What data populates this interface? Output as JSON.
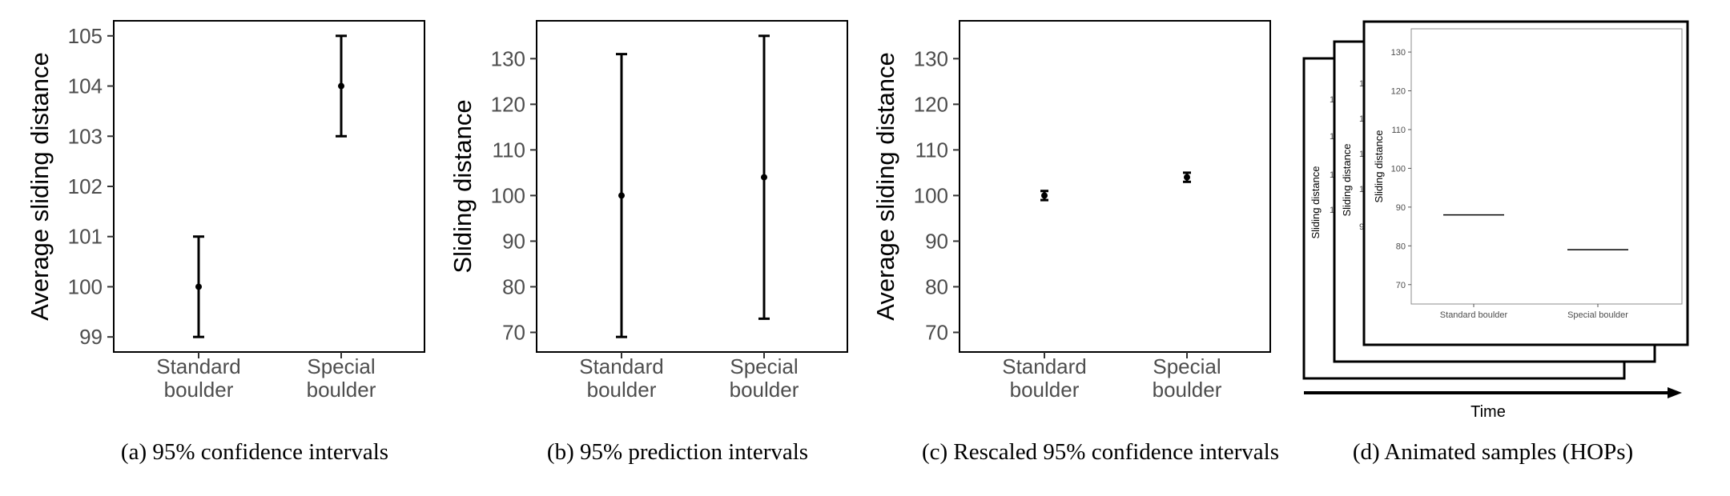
{
  "chart_data": [
    {
      "type": "errorbar",
      "caption": "(a) 95% confidence intervals",
      "ylabel": "Average sliding distance",
      "ylim": [
        98.7,
        105.3
      ],
      "yticks": [
        99,
        100,
        101,
        102,
        103,
        104,
        105
      ],
      "categories": [
        [
          "Standard",
          "boulder"
        ],
        [
          "Special",
          "boulder"
        ]
      ],
      "points": [
        {
          "category": "Standard boulder",
          "value": 100,
          "lower": 99,
          "upper": 101
        },
        {
          "category": "Special boulder",
          "value": 104,
          "lower": 103,
          "upper": 105
        }
      ]
    },
    {
      "type": "errorbar",
      "caption": "(b) 95% prediction intervals",
      "ylabel": "Sliding distance",
      "ylim": [
        65.7,
        138.3
      ],
      "yticks": [
        70,
        80,
        90,
        100,
        110,
        120,
        130
      ],
      "categories": [
        [
          "Standard",
          "boulder"
        ],
        [
          "Special",
          "boulder"
        ]
      ],
      "points": [
        {
          "category": "Standard boulder",
          "value": 100,
          "lower": 69,
          "upper": 131
        },
        {
          "category": "Special boulder",
          "value": 104,
          "lower": 73,
          "upper": 135
        }
      ]
    },
    {
      "type": "errorbar",
      "caption": "(c) Rescaled 95% confidence intervals",
      "ylabel": "Average sliding distance",
      "ylim": [
        65.7,
        138.3
      ],
      "yticks": [
        70,
        80,
        90,
        100,
        110,
        120,
        130
      ],
      "categories": [
        [
          "Standard",
          "boulder"
        ],
        [
          "Special",
          "boulder"
        ]
      ],
      "points": [
        {
          "category": "Standard boulder",
          "value": 100,
          "lower": 99,
          "upper": 101
        },
        {
          "category": "Special boulder",
          "value": 104,
          "lower": 103,
          "upper": 105
        }
      ]
    },
    {
      "type": "hops",
      "caption": "(d) Animated samples (HOPs)",
      "ylabel": "Sliding distance",
      "xlabel": "Time",
      "ylim": [
        65,
        136
      ],
      "yticks": [
        70,
        80,
        90,
        100,
        110,
        120,
        130
      ],
      "categories": [
        "Standard boulder",
        "Special boulder"
      ],
      "samples": [
        {
          "category": "Standard boulder",
          "value": 88
        },
        {
          "category": "Special boulder",
          "value": 79
        }
      ]
    }
  ]
}
